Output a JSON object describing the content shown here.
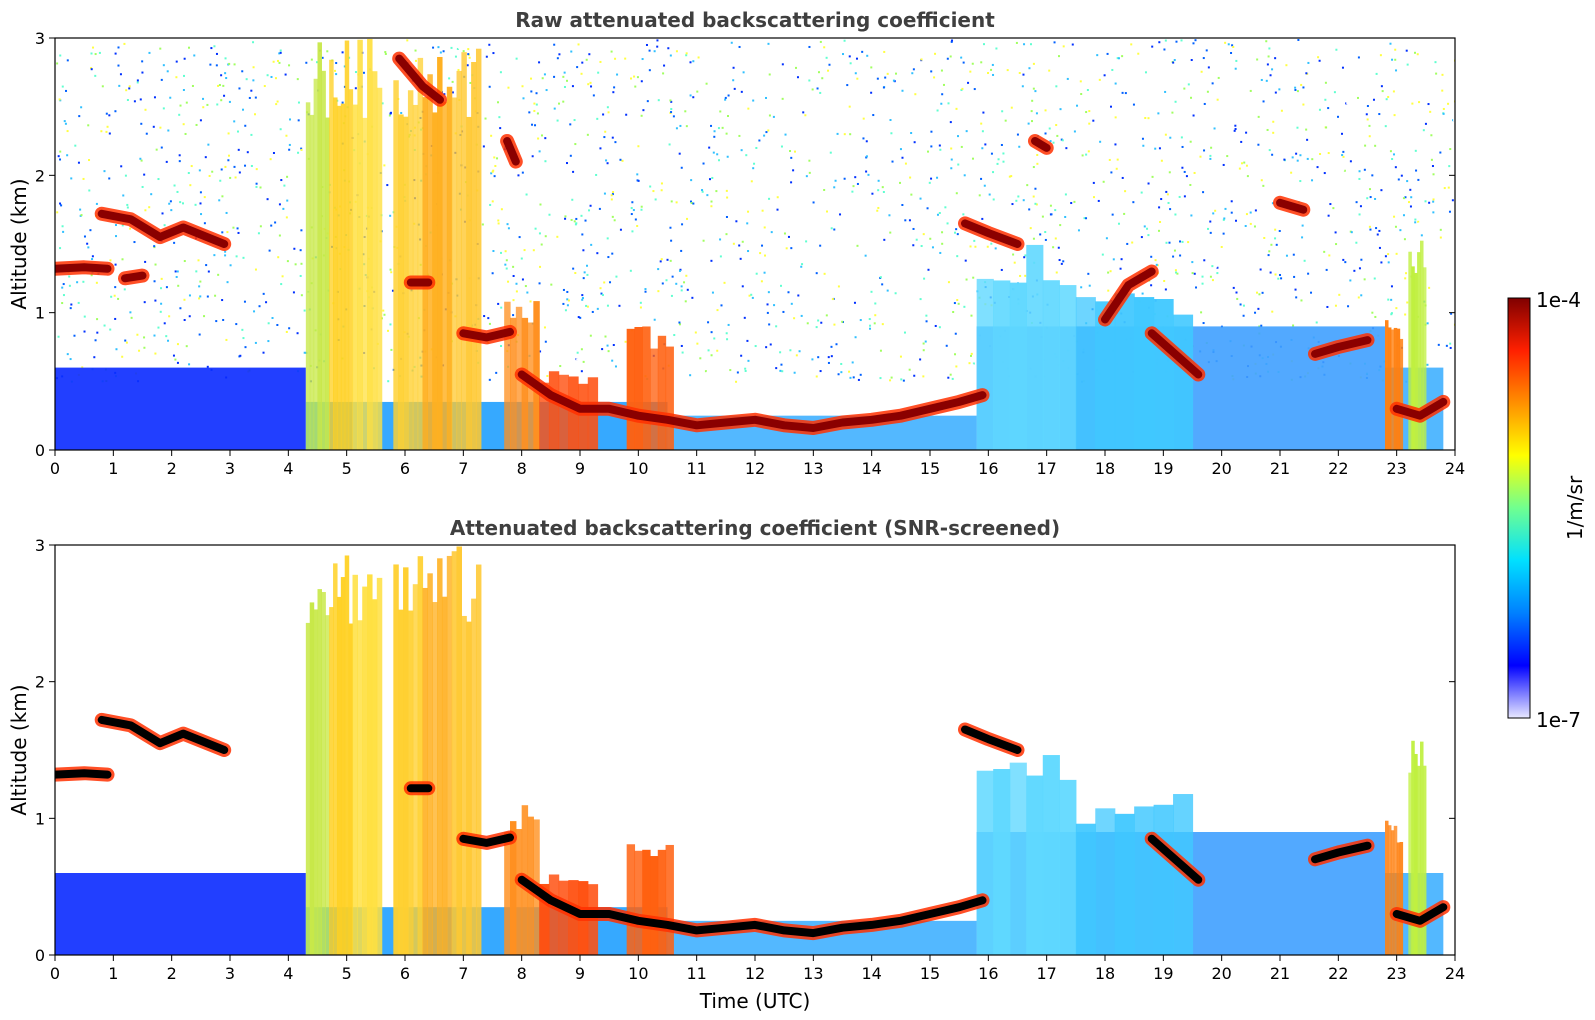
{
  "chart_data": [
    {
      "type": "heatmap",
      "title": "Raw attenuated backscattering coefficient",
      "xlabel": "",
      "ylabel": "Altitude (km)",
      "xlim": [
        0,
        24
      ],
      "ylim": [
        0,
        3
      ],
      "x_ticks": [
        "0",
        "1",
        "2",
        "3",
        "4",
        "5",
        "6",
        "7",
        "8",
        "9",
        "10",
        "11",
        "12",
        "13",
        "14",
        "15",
        "16",
        "17",
        "18",
        "19",
        "20",
        "21",
        "22",
        "23",
        "24"
      ],
      "y_ticks": [
        "0",
        "1",
        "2",
        "3"
      ],
      "cloud_layers": [
        {
          "x": [
            0.0,
            0.5,
            0.9
          ],
          "y": [
            1.32,
            1.33,
            1.32
          ]
        },
        {
          "x": [
            0.8,
            1.3,
            1.8,
            2.2,
            2.9
          ],
          "y": [
            1.72,
            1.68,
            1.55,
            1.62,
            1.5
          ]
        },
        {
          "x": [
            1.2,
            1.5
          ],
          "y": [
            1.25,
            1.27
          ]
        },
        {
          "x": [
            5.9,
            6.3,
            6.6
          ],
          "y": [
            2.85,
            2.65,
            2.55
          ]
        },
        {
          "x": [
            6.1,
            6.4
          ],
          "y": [
            1.22,
            1.22
          ]
        },
        {
          "x": [
            7.0,
            7.4,
            7.8
          ],
          "y": [
            0.85,
            0.82,
            0.86
          ]
        },
        {
          "x": [
            7.75,
            7.9
          ],
          "y": [
            2.25,
            2.1
          ]
        },
        {
          "x": [
            8.0,
            8.5,
            9.0,
            9.5,
            10.0,
            10.5,
            11.0,
            11.5,
            12.0,
            12.5,
            13.0,
            13.5,
            14.0,
            14.5,
            15.0,
            15.5,
            15.9
          ],
          "y": [
            0.55,
            0.4,
            0.3,
            0.3,
            0.25,
            0.22,
            0.18,
            0.2,
            0.22,
            0.18,
            0.16,
            0.2,
            0.22,
            0.25,
            0.3,
            0.35,
            0.4
          ]
        },
        {
          "x": [
            15.6,
            16.0,
            16.5
          ],
          "y": [
            1.65,
            1.58,
            1.5
          ]
        },
        {
          "x": [
            16.8,
            17.0
          ],
          "y": [
            2.25,
            2.2
          ]
        },
        {
          "x": [
            18.0,
            18.4,
            18.8
          ],
          "y": [
            0.95,
            1.2,
            1.3
          ]
        },
        {
          "x": [
            18.8,
            19.2,
            19.6
          ],
          "y": [
            0.85,
            0.7,
            0.55
          ]
        },
        {
          "x": [
            21.0,
            21.4
          ],
          "y": [
            1.8,
            1.75
          ]
        },
        {
          "x": [
            21.6,
            22.0,
            22.5
          ],
          "y": [
            0.7,
            0.75,
            0.8
          ]
        },
        {
          "x": [
            23.0,
            23.4,
            23.8
          ],
          "y": [
            0.3,
            0.25,
            0.35
          ]
        }
      ]
    },
    {
      "type": "heatmap",
      "title": "Attenuated backscattering coefficient (SNR-screened)",
      "xlabel": "Time (UTC)",
      "ylabel": "Altitude (km)",
      "xlim": [
        0,
        24
      ],
      "ylim": [
        0,
        3
      ],
      "x_ticks": [
        "0",
        "1",
        "2",
        "3",
        "4",
        "5",
        "6",
        "7",
        "8",
        "9",
        "10",
        "11",
        "12",
        "13",
        "14",
        "15",
        "16",
        "17",
        "18",
        "19",
        "20",
        "21",
        "22",
        "23",
        "24"
      ],
      "y_ticks": [
        "0",
        "1",
        "2",
        "3"
      ],
      "cloud_layers": [
        {
          "x": [
            0.0,
            0.5,
            0.9
          ],
          "y": [
            1.32,
            1.33,
            1.32
          ]
        },
        {
          "x": [
            0.8,
            1.3,
            1.8,
            2.2,
            2.9
          ],
          "y": [
            1.72,
            1.68,
            1.55,
            1.62,
            1.5
          ]
        },
        {
          "x": [
            6.1,
            6.4
          ],
          "y": [
            1.22,
            1.22
          ]
        },
        {
          "x": [
            7.0,
            7.4,
            7.8
          ],
          "y": [
            0.85,
            0.82,
            0.86
          ]
        },
        {
          "x": [
            8.0,
            8.5,
            9.0,
            9.5,
            10.0,
            10.5,
            11.0,
            11.5,
            12.0,
            12.5,
            13.0,
            13.5,
            14.0,
            14.5,
            15.0,
            15.5,
            15.9
          ],
          "y": [
            0.55,
            0.4,
            0.3,
            0.3,
            0.25,
            0.22,
            0.18,
            0.2,
            0.22,
            0.18,
            0.16,
            0.2,
            0.22,
            0.25,
            0.3,
            0.35,
            0.4
          ]
        },
        {
          "x": [
            15.6,
            16.0,
            16.5
          ],
          "y": [
            1.65,
            1.58,
            1.5
          ]
        },
        {
          "x": [
            18.8,
            19.2,
            19.6
          ],
          "y": [
            0.85,
            0.7,
            0.55
          ]
        },
        {
          "x": [
            21.6,
            22.0,
            22.5
          ],
          "y": [
            0.7,
            0.75,
            0.8
          ]
        },
        {
          "x": [
            23.0,
            23.4,
            23.8
          ],
          "y": [
            0.3,
            0.25,
            0.35
          ]
        }
      ]
    }
  ],
  "colorbar": {
    "label": "1/m/sr",
    "max_label": "1e-4",
    "min_label": "1e-7",
    "colors": [
      "#e8e8ff",
      "#0000ff",
      "#0080ff",
      "#00e0ff",
      "#70ff90",
      "#ffff00",
      "#ff9000",
      "#ff2000",
      "#800000"
    ]
  }
}
